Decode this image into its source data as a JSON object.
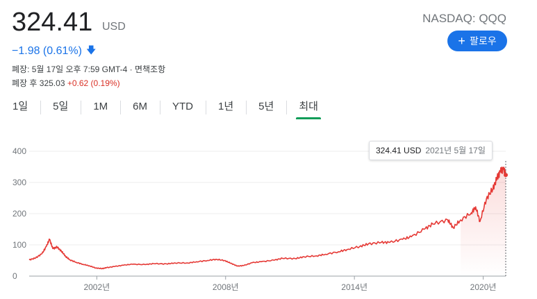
{
  "quote": {
    "price": "324.41",
    "currency": "USD",
    "ticker": "NASDAQ: QQQ",
    "change": "−1.98 (0.61%)",
    "change_arrow_icon": "arrow-down-icon",
    "close_info": "폐장: 5월 17일 오후 7:59 GMT-4 · 면책조항",
    "after_hours_label": "폐장 후 325.03",
    "after_hours_change": "+0.62 (0.19%)"
  },
  "follow_button": {
    "icon": "plus-icon",
    "label": "팔로우"
  },
  "tabs": [
    {
      "label": "1일",
      "active": false
    },
    {
      "label": "5일",
      "active": false
    },
    {
      "label": "1M",
      "active": false
    },
    {
      "label": "6M",
      "active": false
    },
    {
      "label": "YTD",
      "active": false
    },
    {
      "label": "1년",
      "active": false
    },
    {
      "label": "5년",
      "active": false
    },
    {
      "label": "최대",
      "active": true
    }
  ],
  "tooltip": {
    "value": "324.41 USD",
    "date": "2021년 5월 17일"
  },
  "colors": {
    "line": "#e53935",
    "accent": "#1a73e8",
    "down": "#1a73e8",
    "up": "#d93025",
    "active_tab": "#0f9d58"
  },
  "chart_data": {
    "type": "line",
    "title": "",
    "xlabel": "",
    "ylabel": "",
    "x_ticks": [
      "2002년",
      "2008년",
      "2014년",
      "2020년"
    ],
    "y_ticks": [
      0,
      100,
      200,
      300,
      400
    ],
    "ylim": [
      0,
      400
    ],
    "xlim": [
      1999.2,
      2021.4
    ],
    "grid": true,
    "series": [
      {
        "x": [
          1999.2,
          1999.5,
          1999.8,
          2000.0,
          2000.15,
          2000.3,
          2000.5,
          2000.7,
          2000.9,
          2001.1,
          2001.4,
          2001.7,
          2002.0,
          2002.3,
          2002.6,
          2002.8,
          2003.2,
          2003.6,
          2004.0,
          2004.6,
          2005.0,
          2005.6,
          2006.0,
          2006.6,
          2007.0,
          2007.5,
          2007.9,
          2008.3,
          2008.6,
          2008.9,
          2009.2,
          2009.6,
          2010.0,
          2010.6,
          2011.0,
          2011.6,
          2012.0,
          2012.6,
          2013.0,
          2013.6,
          2014.0,
          2014.6,
          2015.0,
          2015.6,
          2016.0,
          2016.6,
          2017.0,
          2017.6,
          2018.0,
          2018.7,
          2018.95,
          2019.3,
          2019.8,
          2020.0,
          2020.2,
          2020.5,
          2020.8,
          2021.0,
          2021.15,
          2021.3,
          2021.4
        ],
        "y": [
          52,
          58,
          72,
          95,
          118,
          88,
          93,
          80,
          63,
          52,
          44,
          38,
          33,
          26,
          24,
          27,
          31,
          35,
          38,
          37,
          40,
          39,
          42,
          42,
          46,
          50,
          54,
          50,
          41,
          32,
          34,
          43,
          46,
          51,
          57,
          56,
          62,
          65,
          70,
          78,
          85,
          95,
          103,
          108,
          108,
          118,
          126,
          150,
          167,
          180,
          155,
          180,
          203,
          222,
          175,
          248,
          280,
          315,
          335,
          342,
          324
        ]
      }
    ]
  }
}
